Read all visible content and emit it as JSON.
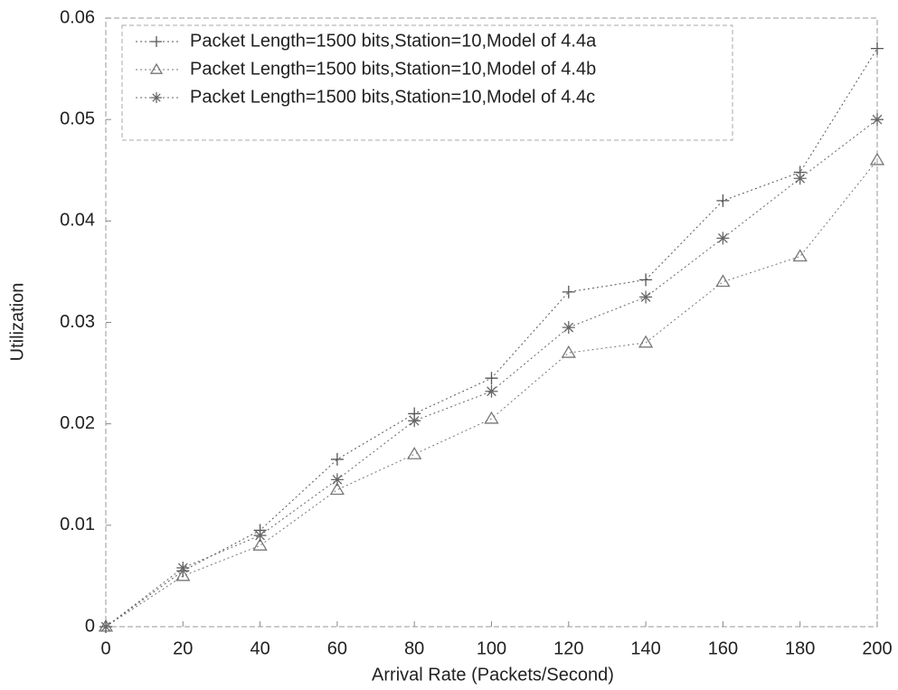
{
  "chart_data": {
    "type": "line",
    "xlabel": "Arrival Rate (Packets/Second)",
    "ylabel": "Utilization",
    "x": [
      0,
      20,
      40,
      60,
      80,
      100,
      120,
      140,
      160,
      180,
      200
    ],
    "xlim": [
      0,
      200
    ],
    "xticks": [
      0,
      20,
      40,
      60,
      80,
      100,
      120,
      140,
      160,
      180,
      200
    ],
    "ylim": [
      0,
      0.06
    ],
    "yticks": [
      0,
      0.01,
      0.02,
      0.03,
      0.04,
      0.05,
      0.06
    ],
    "legend": "upper left",
    "series": [
      {
        "name": "Packet Length=1500 bits,Station=10,Model of 4.4a",
        "color": "#555555",
        "marker": "plus",
        "values": [
          0,
          0.0055,
          0.0095,
          0.0165,
          0.021,
          0.0245,
          0.033,
          0.0342,
          0.042,
          0.0448,
          0.057
        ]
      },
      {
        "name": "Packet Length=1500 bits,Station=10,Model of 4.4b",
        "color": "#777777",
        "marker": "triangle",
        "values": [
          0,
          0.005,
          0.008,
          0.0135,
          0.017,
          0.0205,
          0.027,
          0.028,
          0.034,
          0.0365,
          0.046
        ]
      },
      {
        "name": "Packet Length=1500 bits,Station=10,Model of 4.4c",
        "color": "#666666",
        "marker": "star",
        "values": [
          0,
          0.0058,
          0.009,
          0.0145,
          0.0203,
          0.0232,
          0.0295,
          0.0325,
          0.0383,
          0.0442,
          0.05
        ]
      }
    ]
  }
}
